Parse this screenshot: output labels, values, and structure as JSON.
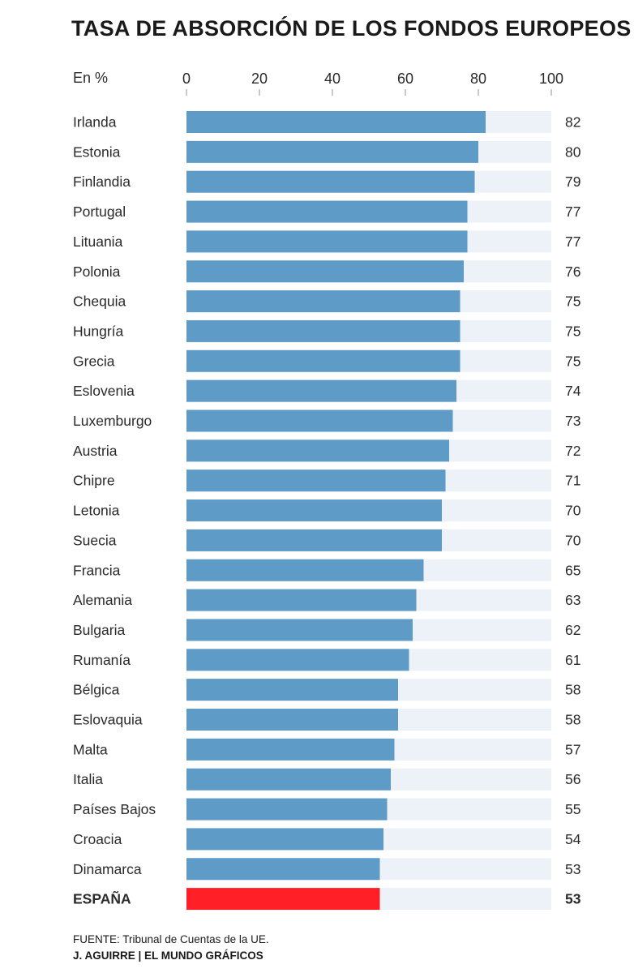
{
  "chart_data": {
    "type": "bar",
    "orientation": "horizontal",
    "title": "TASA DE ABSORCIÓN DE LOS FONDOS EUROPEOS",
    "unit_label": "En %",
    "xlim": [
      0,
      100
    ],
    "xticks": [
      "0",
      "20",
      "40",
      "60",
      "80",
      "100"
    ],
    "categories": [
      "Irlanda",
      "Estonia",
      "Finlandia",
      "Portugal",
      "Lituania",
      "Polonia",
      "Chequia",
      "Hungría",
      "Grecia",
      "Eslovenia",
      "Luxemburgo",
      "Austria",
      "Chipre",
      "Letonia",
      "Suecia",
      "Francia",
      "Alemania",
      "Bulgaria",
      "Rumanía",
      "Bélgica",
      "Eslovaquia",
      "Malta",
      "Italia",
      "Países Bajos",
      "Croacia",
      "Dinamarca",
      "ESPAÑA"
    ],
    "values": [
      82,
      80,
      79,
      77,
      77,
      76,
      75,
      75,
      75,
      74,
      73,
      72,
      71,
      70,
      70,
      65,
      63,
      62,
      61,
      58,
      58,
      57,
      56,
      55,
      54,
      53,
      53
    ],
    "highlight": "ESPAÑA",
    "colors": {
      "bar": "#5e9bc7",
      "highlight_bar": "#ff1f26",
      "track": "#edf2f8",
      "tick": "#b8b8b8"
    },
    "grid": false
  },
  "footer": {
    "source": "FUENTE: Tribunal de Cuentas de la UE.",
    "credit": "J. AGUIRRE | EL MUNDO GRÁFICOS"
  }
}
